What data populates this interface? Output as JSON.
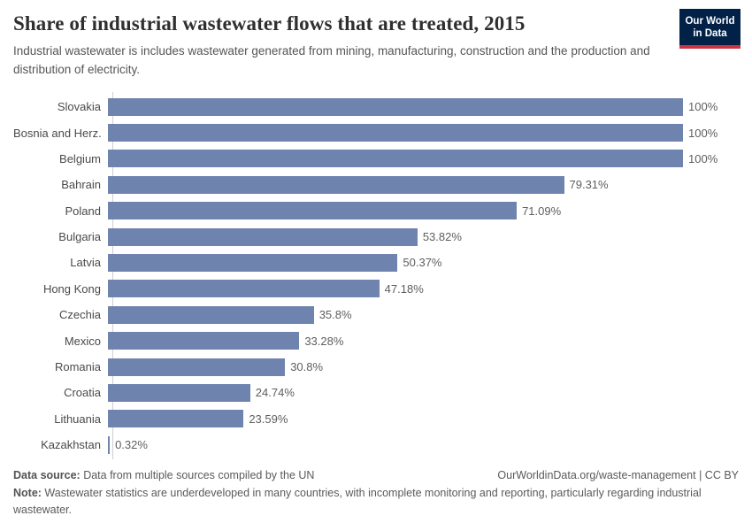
{
  "header": {
    "title": "Share of industrial wastewater flows that are treated, 2015",
    "subtitle": "Industrial wastewater is includes wastewater generated from mining, manufacturing, construction and the production and distribution of electricity.",
    "logo_line1": "Our World",
    "logo_line2": "in Data"
  },
  "chart_data": {
    "type": "bar",
    "orientation": "horizontal",
    "title": "Share of industrial wastewater flows that are treated, 2015",
    "categories": [
      "Slovakia",
      "Bosnia and Herz.",
      "Belgium",
      "Bahrain",
      "Poland",
      "Bulgaria",
      "Latvia",
      "Hong Kong",
      "Czechia",
      "Mexico",
      "Romania",
      "Croatia",
      "Lithuania",
      "Kazakhstan"
    ],
    "values": [
      100,
      100,
      100,
      79.31,
      71.09,
      53.82,
      50.37,
      47.18,
      35.8,
      33.28,
      30.8,
      24.74,
      23.59,
      0.32
    ],
    "value_labels": [
      "100%",
      "100%",
      "100%",
      "79.31%",
      "71.09%",
      "53.82%",
      "50.37%",
      "47.18%",
      "35.8%",
      "33.28%",
      "30.8%",
      "24.74%",
      "23.59%",
      "0.32%"
    ],
    "xlabel": "",
    "ylabel": "",
    "xlim": [
      0,
      100
    ],
    "grid": false,
    "legend": false,
    "bar_color": "#6e84ae"
  },
  "footer": {
    "datasource_label": "Data source:",
    "datasource_text": " Data from multiple sources compiled by the UN",
    "attribution": "OurWorldinData.org/waste-management | CC BY",
    "note_label": "Note:",
    "note_text": " Wastewater statistics are underdeveloped in many countries, with incomplete monitoring and reporting, particularly regarding industrial wastewater."
  },
  "colors": {
    "bar": "#6e84ae",
    "logo_bg": "#012147",
    "logo_accent": "#cb3443",
    "axis": "#cfcfcf",
    "title_text": "#2f2f2f",
    "body_text": "#555555"
  }
}
